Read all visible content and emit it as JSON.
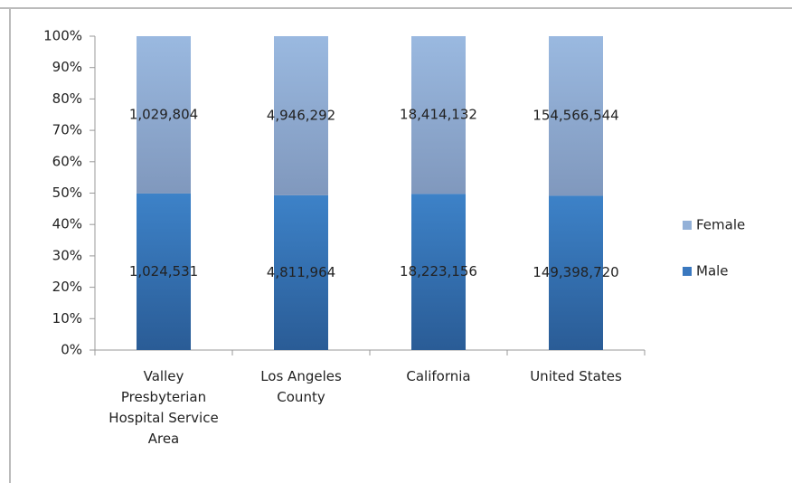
{
  "chart_data": {
    "type": "bar",
    "stacking": "percent",
    "categories": [
      "Valley Presbyterian Hospital Service Area",
      "Los Angeles County",
      "California",
      "United States"
    ],
    "series": [
      {
        "name": "Male",
        "color": "#3a78bf",
        "values": [
          1024531,
          4811964,
          18223156,
          149398720
        ],
        "value_labels": [
          "1,024,531",
          "4,811,964",
          "18,223,156",
          "149,398,720"
        ]
      },
      {
        "name": "Female",
        "color": "#93b1d8",
        "values": [
          1029804,
          4946292,
          18414132,
          154566544
        ],
        "value_labels": [
          "1,029,804",
          "4,946,292",
          "18,414,132",
          "154,566,544"
        ]
      }
    ],
    "ylim": [
      0,
      100
    ],
    "yticks": [
      {
        "value": 0,
        "label": "0%"
      },
      {
        "value": 10,
        "label": "10%"
      },
      {
        "value": 20,
        "label": "20%"
      },
      {
        "value": 30,
        "label": "30%"
      },
      {
        "value": 40,
        "label": "40%"
      },
      {
        "value": 50,
        "label": "50%"
      },
      {
        "value": 60,
        "label": "60%"
      },
      {
        "value": 70,
        "label": "70%"
      },
      {
        "value": 80,
        "label": "80%"
      },
      {
        "value": 90,
        "label": "90%"
      },
      {
        "value": 100,
        "label": "100%"
      }
    ],
    "legend": "right"
  }
}
